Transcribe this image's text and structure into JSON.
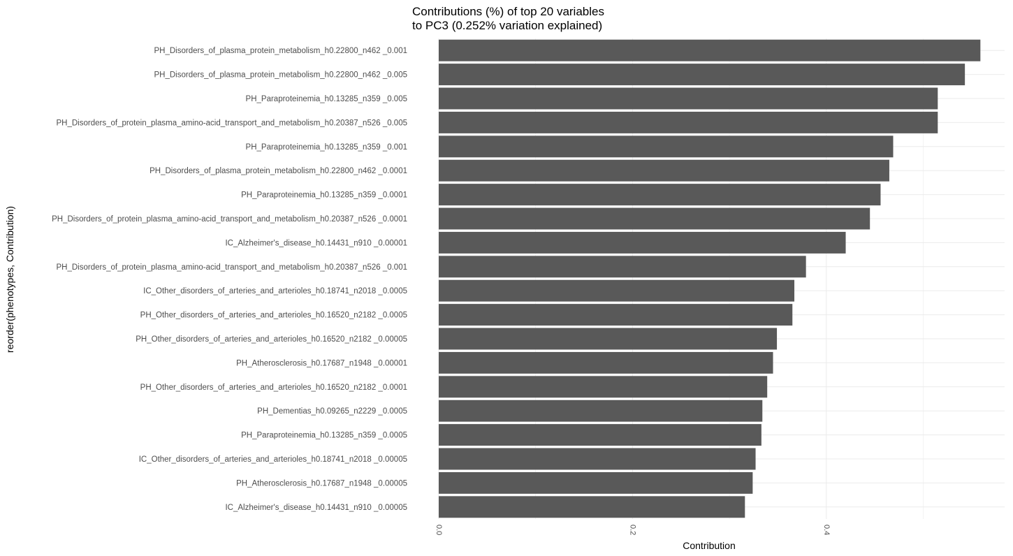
{
  "chart_data": {
    "type": "bar",
    "orientation": "horizontal",
    "title_lines": [
      "Contributions (%) of top 20 variables",
      "to PC3 (0.252% variation explained)"
    ],
    "xlabel": "Contribution",
    "ylabel": "reorder(phenotypes, Contribution)",
    "xlim": [
      0,
      0.584
    ],
    "x_ticks": [
      0.0,
      0.2,
      0.4
    ],
    "x_tick_labels": [
      "0.0",
      "0.2",
      "0.4"
    ],
    "grid": true,
    "bar_color": "#595959",
    "grid_color": "#ebebeb",
    "categories": [
      "PH_Disorders_of_plasma_protein_metabolism_h0.22800_n462 _0.001",
      "PH_Disorders_of_plasma_protein_metabolism_h0.22800_n462 _0.005",
      "PH_Paraproteinemia_h0.13285_n359 _0.005",
      "PH_Disorders_of_protein_plasma_amino-acid_transport_and_metabolism_h0.20387_n526 _0.005",
      "PH_Paraproteinemia_h0.13285_n359 _0.001",
      "PH_Disorders_of_plasma_protein_metabolism_h0.22800_n462 _0.0001",
      "PH_Paraproteinemia_h0.13285_n359 _0.0001",
      "PH_Disorders_of_protein_plasma_amino-acid_transport_and_metabolism_h0.20387_n526 _0.0001",
      "IC_Alzheimer's_disease_h0.14431_n910 _0.00001",
      "PH_Disorders_of_protein_plasma_amino-acid_transport_and_metabolism_h0.20387_n526 _0.001",
      "IC_Other_disorders_of_arteries_and_arterioles_h0.18741_n2018 _0.0005",
      "PH_Other_disorders_of_arteries_and_arterioles_h0.16520_n2182 _0.0005",
      "PH_Other_disorders_of_arteries_and_arterioles_h0.16520_n2182 _0.00005",
      "PH_Atherosclerosis_h0.17687_n1948 _0.00001",
      "PH_Other_disorders_of_arteries_and_arterioles_h0.16520_n2182 _0.0001",
      "PH_Dementias_h0.09265_n2229 _0.0005",
      "PH_Paraproteinemia_h0.13285_n359 _0.0005",
      "IC_Other_disorders_of_arteries_and_arterioles_h0.18741_n2018 _0.00005",
      "PH_Atherosclerosis_h0.17687_n1948 _0.00005",
      "IC_Alzheimer's_disease_h0.14431_n910 _0.00005"
    ],
    "values": [
      0.559,
      0.543,
      0.515,
      0.515,
      0.469,
      0.465,
      0.456,
      0.445,
      0.42,
      0.379,
      0.367,
      0.365,
      0.349,
      0.345,
      0.339,
      0.334,
      0.333,
      0.327,
      0.324,
      0.316
    ]
  }
}
